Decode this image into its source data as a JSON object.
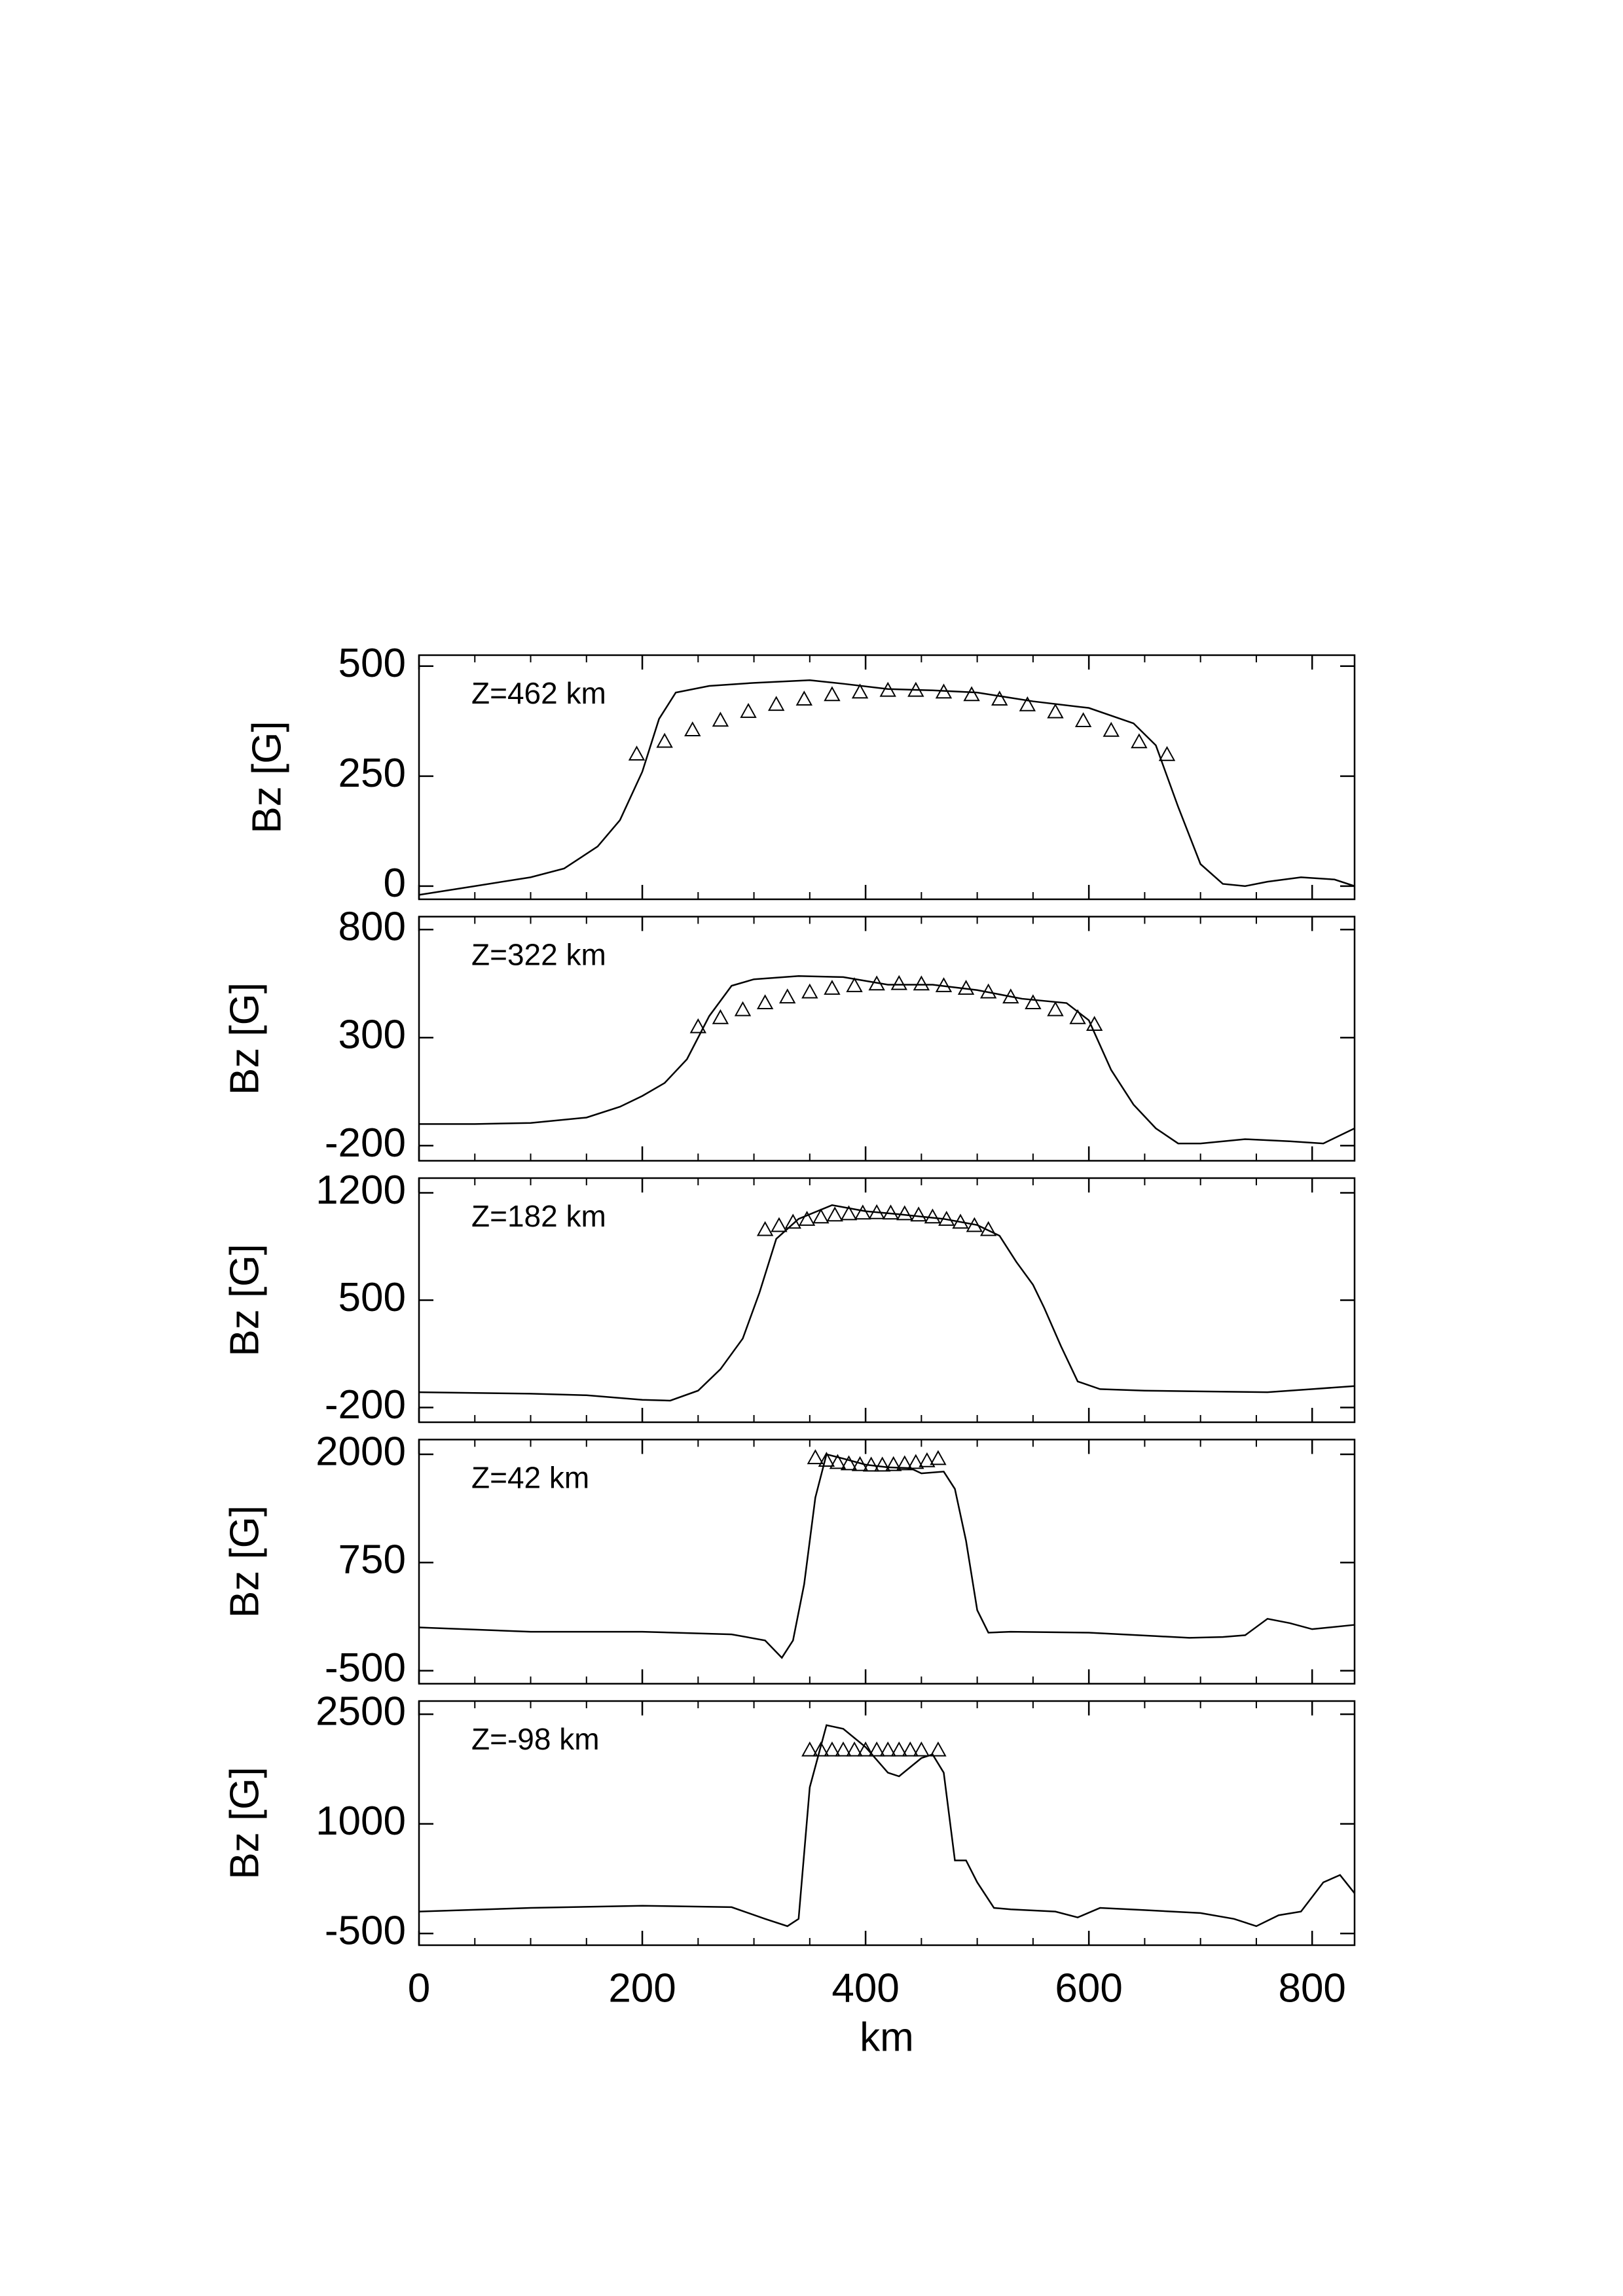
{
  "chart_data": [
    {
      "type": "line",
      "annotation": "Z=462 km",
      "ylabel": "Bz [G]",
      "xlim": [
        0,
        838
      ],
      "ylim": [
        -30,
        525
      ],
      "xticks": [
        0,
        200,
        400,
        600,
        800
      ],
      "xminorticks": [
        50,
        100,
        150,
        250,
        300,
        350,
        450,
        500,
        550,
        650,
        700,
        750
      ],
      "yticks": [
        0,
        250,
        500
      ],
      "series": [
        {
          "color": "#000000",
          "x": [
            0,
            50,
            100,
            130,
            160,
            180,
            200,
            215,
            230,
            260,
            300,
            350,
            380,
            420,
            460,
            500,
            550,
            600,
            640,
            660,
            680,
            700,
            720,
            740,
            760,
            790,
            820,
            838
          ],
          "values": [
            -20,
            0,
            20,
            40,
            90,
            150,
            260,
            380,
            440,
            455,
            462,
            468,
            460,
            448,
            445,
            440,
            420,
            405,
            370,
            320,
            180,
            50,
            5,
            0,
            10,
            20,
            15,
            0
          ]
        },
        {
          "color": "#000000",
          "marker": "triangle",
          "x": [
            195,
            220,
            245,
            270,
            295,
            320,
            345,
            370,
            395,
            420,
            445,
            470,
            495,
            520,
            545,
            570,
            595,
            620,
            645,
            670
          ],
          "values": [
            300,
            329,
            355,
            377,
            397,
            413,
            425,
            435,
            441,
            445,
            445,
            441,
            435,
            425,
            412,
            396,
            376,
            354,
            328,
            299
          ]
        }
      ]
    },
    {
      "type": "line",
      "annotation": "Z=322 km",
      "ylabel": "Bz [G]",
      "xlim": [
        0,
        838
      ],
      "ylim": [
        -270,
        860
      ],
      "xticks": [
        0,
        200,
        400,
        600,
        800
      ],
      "xminorticks": [
        50,
        100,
        150,
        250,
        300,
        350,
        450,
        500,
        550,
        650,
        700,
        750
      ],
      "yticks": [
        -200,
        300,
        800
      ],
      "series": [
        {
          "color": "#000000",
          "x": [
            0,
            50,
            100,
            150,
            180,
            200,
            220,
            240,
            260,
            280,
            300,
            340,
            380,
            420,
            460,
            500,
            540,
            580,
            600,
            620,
            640,
            660,
            680,
            700,
            740,
            780,
            810,
            838
          ],
          "values": [
            -100,
            -100,
            -95,
            -70,
            -20,
            30,
            90,
            200,
            400,
            540,
            570,
            585,
            580,
            545,
            545,
            520,
            480,
            460,
            380,
            150,
            -10,
            -120,
            -190,
            -190,
            -170,
            -180,
            -190,
            -120
          ]
        },
        {
          "color": "#000000",
          "marker": "triangle",
          "x": [
            250,
            270,
            290,
            310,
            330,
            350,
            370,
            390,
            410,
            430,
            450,
            470,
            490,
            510,
            530,
            550,
            570,
            590,
            605
          ],
          "values": [
            350,
            392,
            429,
            461,
            488,
            511,
            528,
            540,
            548,
            550,
            548,
            540,
            528,
            511,
            488,
            461,
            429,
            392,
            361
          ]
        }
      ]
    },
    {
      "type": "line",
      "annotation": "Z=182 km",
      "ylabel": "Bz [G]",
      "xlim": [
        0,
        838
      ],
      "ylim": [
        -296,
        1296
      ],
      "xticks": [
        0,
        200,
        400,
        600,
        800
      ],
      "xminorticks": [
        50,
        100,
        150,
        250,
        300,
        350,
        450,
        500,
        550,
        650,
        700,
        750
      ],
      "yticks": [
        -200,
        500,
        1200
      ],
      "series": [
        {
          "color": "#000000",
          "x": [
            0,
            50,
            100,
            150,
            200,
            225,
            250,
            270,
            290,
            305,
            320,
            340,
            370,
            400,
            430,
            470,
            500,
            520,
            535,
            550,
            560,
            575,
            590,
            610,
            650,
            700,
            760,
            800,
            838
          ],
          "values": [
            -100,
            -105,
            -110,
            -120,
            -150,
            -155,
            -90,
            50,
            250,
            550,
            900,
            1030,
            1120,
            1080,
            1060,
            1030,
            990,
            920,
            750,
            600,
            450,
            200,
            -30,
            -80,
            -90,
            -95,
            -100,
            -80,
            -60
          ]
        },
        {
          "color": "#000000",
          "marker": "triangle",
          "x": [
            310,
            322.5,
            335,
            347.5,
            360,
            372.5,
            385,
            397.5,
            410,
            422.5,
            435,
            447.5,
            460,
            472.5,
            485,
            497.5,
            510
          ],
          "values": [
            960,
            986,
            1008,
            1027,
            1042,
            1055,
            1063,
            1068,
            1070,
            1068,
            1063,
            1055,
            1042,
            1027,
            1008,
            986,
            960
          ]
        }
      ]
    },
    {
      "type": "line",
      "annotation": "Z=42 km",
      "ylabel": "Bz [G]",
      "xlim": [
        0,
        838
      ],
      "ylim": [
        -650,
        2170
      ],
      "xticks": [
        0,
        200,
        400,
        600,
        800
      ],
      "xminorticks": [
        50,
        100,
        150,
        250,
        300,
        350,
        450,
        500,
        550,
        650,
        700,
        750
      ],
      "yticks": [
        -500,
        750,
        2000
      ],
      "series": [
        {
          "color": "#000000",
          "x": [
            0,
            100,
            200,
            280,
            310,
            325,
            335,
            345,
            355,
            365,
            380,
            400,
            420,
            440,
            450,
            470,
            480,
            490,
            500,
            510,
            530,
            600,
            660,
            690,
            720,
            740,
            760,
            780,
            800,
            838
          ],
          "values": [
            0,
            -50,
            -50,
            -80,
            -150,
            -350,
            -150,
            500,
            1500,
            2000,
            1950,
            1880,
            1850,
            1840,
            1780,
            1800,
            1600,
            1000,
            200,
            -60,
            -50,
            -60,
            -100,
            -120,
            -110,
            -90,
            100,
            50,
            -20,
            30
          ]
        },
        {
          "color": "#000000",
          "marker": "triangle",
          "x": [
            355,
            365,
            375,
            385,
            395,
            405,
            415,
            425,
            435,
            445,
            455,
            465
          ],
          "values": [
            1960,
            1930,
            1905,
            1890,
            1880,
            1875,
            1875,
            1880,
            1890,
            1905,
            1925,
            1950
          ]
        }
      ]
    },
    {
      "type": "line",
      "annotation": "Z=-98 km",
      "ylabel": "Bz [G]",
      "xlabel": "km",
      "xlim": [
        0,
        838
      ],
      "ylim": [
        -660,
        2680
      ],
      "xticks": [
        0,
        200,
        400,
        600,
        800
      ],
      "xminorticks": [
        50,
        100,
        150,
        250,
        300,
        350,
        450,
        500,
        550,
        650,
        700,
        750
      ],
      "yticks": [
        -500,
        1000,
        2500
      ],
      "series": [
        {
          "color": "#000000",
          "x": [
            0,
            100,
            200,
            280,
            310,
            330,
            340,
            350,
            365,
            380,
            400,
            420,
            430,
            450,
            460,
            470,
            480,
            490,
            500,
            515,
            530,
            570,
            590,
            610,
            650,
            700,
            730,
            750,
            770,
            790,
            810,
            825,
            838
          ],
          "values": [
            -200,
            -150,
            -120,
            -140,
            -300,
            -400,
            -300,
            1500,
            2350,
            2300,
            2050,
            1700,
            1650,
            1900,
            1950,
            1700,
            500,
            500,
            200,
            -150,
            -170,
            -200,
            -280,
            -150,
            -180,
            -220,
            -300,
            -400,
            -250,
            -200,
            200,
            300,
            50
          ]
        },
        {
          "color": "#000000",
          "marker": "triangle",
          "x": [
            350,
            360,
            370,
            380,
            390,
            400,
            410,
            420,
            430,
            440,
            450,
            465
          ],
          "values": [
            2010,
            2010,
            2010,
            2010,
            2010,
            2010,
            2010,
            2010,
            2010,
            2010,
            2010,
            2010
          ]
        }
      ]
    }
  ]
}
